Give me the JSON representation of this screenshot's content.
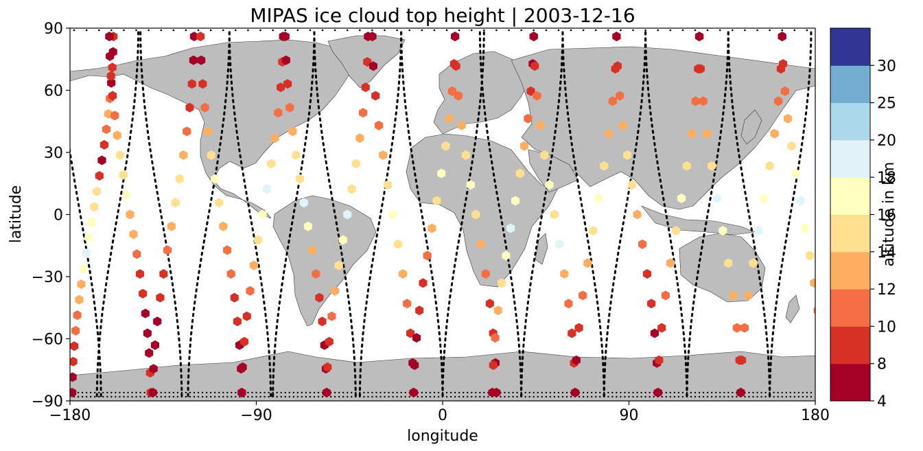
{
  "chart_data": {
    "type": "scatter",
    "title": "MIPAS ice cloud top height | 2003-12-16",
    "xlabel": "longitude",
    "ylabel": "latitude",
    "xlim": [
      -180,
      180
    ],
    "ylim": [
      -90,
      90
    ],
    "xticks": [
      -180,
      -90,
      0,
      90,
      180
    ],
    "yticks": [
      -90,
      -60,
      -30,
      0,
      30,
      60,
      90
    ],
    "xtick_labels": [
      "−180",
      "−90",
      "0",
      "90",
      "180"
    ],
    "ytick_labels": [
      "−90",
      "−60",
      "−30",
      "0",
      "30",
      "60",
      "90"
    ],
    "land_color": "#bdbdbd",
    "marker": "hexagon",
    "colorbar": {
      "label": "altitude in km",
      "boundaries": [
        4,
        8,
        10,
        12,
        14,
        16,
        18,
        20,
        25,
        30
      ],
      "tick_labels": [
        "4",
        "8",
        "10",
        "12",
        "14",
        "16",
        "18",
        "20",
        "25",
        "30"
      ],
      "colors": [
        "#a50026",
        "#d73027",
        "#f46d43",
        "#fdae61",
        "#fee090",
        "#ffffbf",
        "#e0f3f8",
        "#abd9e9",
        "#74add1",
        "#313695"
      ]
    },
    "clouds_by_track": [
      {
        "lon": -175,
        "h": [
          9,
          7,
          8,
          6,
          11,
          12,
          10,
          8,
          7,
          9,
          14,
          15,
          16,
          17,
          18,
          16,
          13,
          12,
          11,
          10,
          9,
          8,
          7,
          6
        ]
      },
      {
        "lon": -157,
        "h": [
          7,
          6,
          8,
          9,
          11,
          12,
          14,
          15,
          16,
          13,
          12,
          10,
          9,
          8,
          7,
          6,
          5,
          8,
          9
        ]
      },
      {
        "lon": -136,
        "h": [
          6,
          7,
          8,
          9,
          10,
          12,
          14,
          15,
          13,
          11,
          9,
          8,
          7,
          6,
          5,
          7
        ]
      },
      {
        "lon": -113,
        "h": [
          8,
          7,
          9,
          10,
          12,
          14,
          16,
          15,
          13,
          11,
          10,
          9,
          8,
          7,
          6,
          5
        ]
      },
      {
        "lon": -93,
        "h": [
          7,
          8,
          9,
          11,
          13,
          15,
          18,
          16,
          14,
          12,
          10,
          9,
          8,
          7,
          6
        ]
      },
      {
        "lon": -72,
        "h": [
          6,
          7,
          8,
          10,
          12,
          14,
          15,
          18,
          16,
          13,
          11,
          9,
          8,
          7,
          6,
          5
        ]
      },
      {
        "lon": -52,
        "h": [
          7,
          8,
          9,
          10,
          12,
          14,
          15,
          18,
          16,
          14,
          12,
          10,
          9,
          8,
          6
        ]
      },
      {
        "lon": -30,
        "h": [
          6,
          7,
          9,
          11,
          13,
          15,
          16,
          14,
          12,
          10,
          8,
          7,
          6
        ]
      },
      {
        "lon": -10,
        "h": [
          8,
          9,
          10,
          12,
          14,
          16,
          15,
          13,
          11,
          9,
          8,
          7,
          6,
          5
        ]
      },
      {
        "lon": 10,
        "h": [
          7,
          8,
          10,
          12,
          14,
          16,
          15,
          13,
          11,
          9,
          8,
          7,
          6
        ]
      },
      {
        "lon": 28,
        "h": [
          6,
          7,
          9,
          11,
          13,
          15,
          16,
          18,
          16,
          14,
          12,
          10,
          8,
          7
        ]
      },
      {
        "lon": 48,
        "h": [
          7,
          8,
          10,
          12,
          14,
          16,
          15,
          18,
          13,
          11,
          9,
          8,
          6
        ]
      },
      {
        "lon": 68,
        "h": [
          8,
          9,
          11,
          13,
          15,
          16,
          14,
          12,
          10,
          9,
          7,
          6
        ]
      },
      {
        "lon": 88,
        "h": [
          7,
          8,
          10,
          12,
          14,
          15,
          13,
          11,
          9,
          8,
          7,
          6,
          5
        ]
      },
      {
        "lon": 108,
        "h": [
          6,
          8,
          10,
          12,
          14,
          16,
          15,
          13,
          11,
          9,
          8,
          7
        ]
      },
      {
        "lon": 128,
        "h": [
          7,
          9,
          11,
          13,
          15,
          18,
          16,
          14,
          12,
          10,
          8,
          6
        ]
      },
      {
        "lon": 148,
        "h": [
          6,
          8,
          10,
          12,
          14,
          16,
          18,
          15,
          13,
          11,
          9,
          7
        ]
      },
      {
        "lon": 168,
        "h": [
          7,
          8,
          10,
          12,
          14,
          16,
          18,
          17,
          15,
          13,
          11,
          9,
          8,
          6
        ]
      }
    ],
    "missing_data_tracks": "dotted black lines along MIPAS orbit tracks"
  }
}
